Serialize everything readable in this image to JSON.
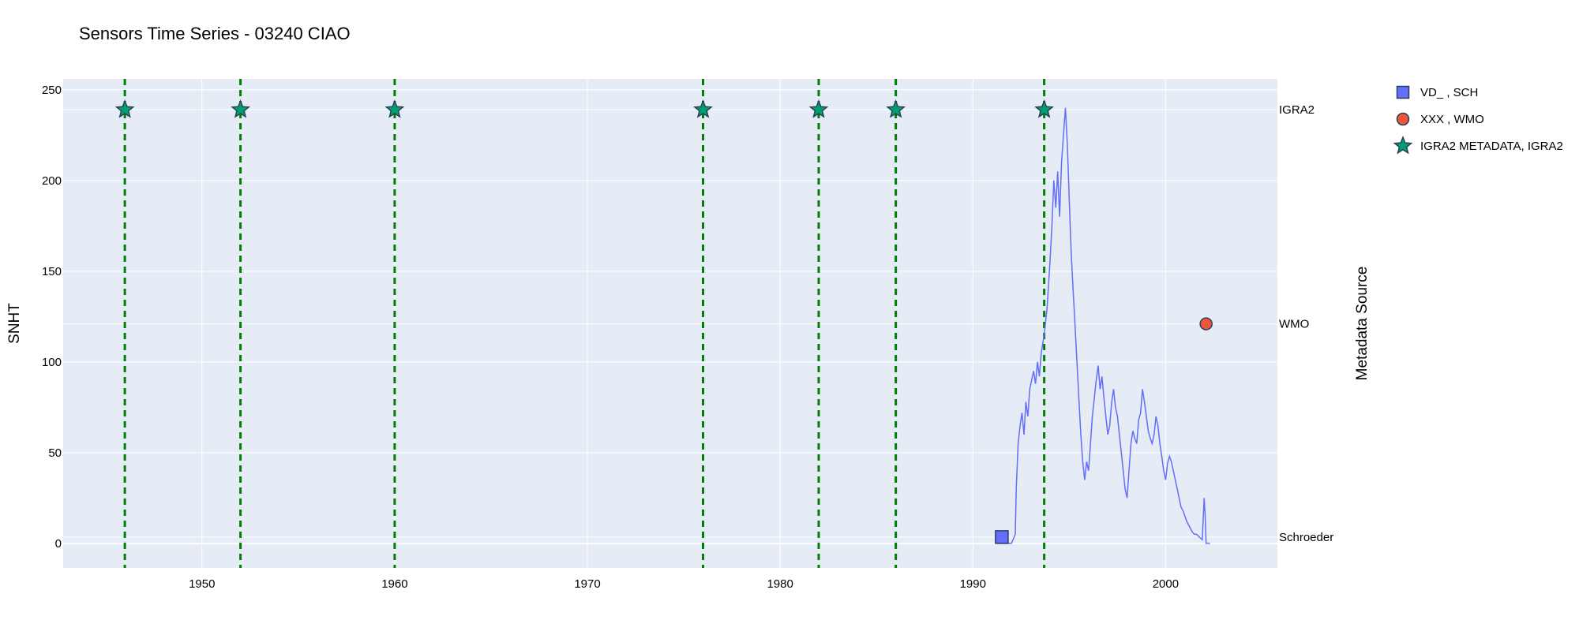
{
  "chart_data": {
    "type": "line",
    "title": "Sensors Time Series - 03240 CIAO",
    "xlabel": "",
    "ylabel": "SNHT",
    "y2label": "Metadata Source",
    "xlim": [
      1942.8,
      2005.8
    ],
    "ylim": [
      -13.5,
      256
    ],
    "x_ticks": [
      1950,
      1960,
      1970,
      1980,
      1990,
      2000
    ],
    "y_ticks": [
      0,
      50,
      100,
      150,
      200,
      250
    ],
    "grid": true,
    "legend_position": "top-right",
    "source_levels": [
      {
        "label": "IGRA2",
        "y": 239
      },
      {
        "label": "WMO",
        "y": 121
      },
      {
        "label": "Schroeder",
        "y": 3.5
      }
    ],
    "event_lines": [
      1946.0,
      1952.0,
      1960.0,
      1976.0,
      1982.0,
      1986.0,
      1993.7
    ],
    "snht_series": {
      "name": "SNHT",
      "x": [
        1991.3,
        1991.6,
        1992.0,
        1992.2,
        1992.25,
        1992.35,
        1992.45,
        1992.55,
        1992.65,
        1992.75,
        1992.85,
        1992.95,
        1993.05,
        1993.15,
        1993.25,
        1993.35,
        1993.45,
        1993.55,
        1993.7,
        1993.85,
        1994.0,
        1994.1,
        1994.2,
        1994.3,
        1994.4,
        1994.5,
        1994.6,
        1994.7,
        1994.8,
        1994.9,
        1995.0,
        1995.1,
        1995.2,
        1995.3,
        1995.4,
        1995.5,
        1995.6,
        1995.7,
        1995.8,
        1995.9,
        1996.0,
        1996.1,
        1996.2,
        1996.3,
        1996.4,
        1996.5,
        1996.6,
        1996.7,
        1996.8,
        1996.9,
        1997.0,
        1997.1,
        1997.2,
        1997.3,
        1997.4,
        1997.5,
        1997.6,
        1997.7,
        1997.8,
        1997.9,
        1998.0,
        1998.1,
        1998.2,
        1998.3,
        1998.4,
        1998.5,
        1998.6,
        1998.7,
        1998.8,
        1998.9,
        1999.0,
        1999.1,
        1999.2,
        1999.3,
        1999.4,
        1999.5,
        1999.6,
        1999.7,
        1999.8,
        1999.9,
        2000.0,
        2000.1,
        2000.2,
        2000.3,
        2000.4,
        2000.5,
        2000.6,
        2000.7,
        2000.8,
        2000.9,
        2001.0,
        2001.1,
        2001.2,
        2001.3,
        2001.4,
        2001.5,
        2001.6,
        2001.7,
        2001.8,
        2001.9,
        2002.0,
        2002.05,
        2002.1,
        2002.15,
        2002.3
      ],
      "y": [
        0,
        0,
        0,
        5,
        30,
        55,
        65,
        72,
        60,
        78,
        70,
        85,
        90,
        95,
        88,
        100,
        92,
        105,
        115,
        130,
        155,
        175,
        200,
        185,
        205,
        180,
        210,
        225,
        240,
        220,
        190,
        160,
        140,
        120,
        100,
        80,
        60,
        45,
        35,
        45,
        40,
        55,
        70,
        80,
        90,
        98,
        85,
        92,
        80,
        70,
        60,
        65,
        78,
        85,
        75,
        70,
        60,
        50,
        40,
        30,
        25,
        40,
        55,
        62,
        58,
        55,
        68,
        72,
        85,
        78,
        70,
        62,
        58,
        55,
        60,
        70,
        65,
        55,
        48,
        40,
        35,
        44,
        48,
        45,
        40,
        35,
        30,
        25,
        20,
        18,
        15,
        12,
        10,
        8,
        6,
        5,
        5,
        4,
        3,
        2,
        25,
        15,
        0,
        0,
        0
      ]
    },
    "series": [
      {
        "name": "VD_ , SCH",
        "marker": "square",
        "color": "#636efa",
        "points": [
          {
            "x": 1991.5,
            "y": 3.5
          }
        ]
      },
      {
        "name": "XXX , WMO",
        "marker": "circle",
        "color": "#ef553b",
        "points": [
          {
            "x": 2002.1,
            "y": 121
          }
        ]
      },
      {
        "name": "IGRA2 METADATA, IGRA2",
        "marker": "star",
        "color": "#00a06d",
        "points": [
          {
            "x": 1946.0,
            "y": 239
          },
          {
            "x": 1952.0,
            "y": 239
          },
          {
            "x": 1960.0,
            "y": 239
          },
          {
            "x": 1976.0,
            "y": 239
          },
          {
            "x": 1982.0,
            "y": 239
          },
          {
            "x": 1986.0,
            "y": 239
          },
          {
            "x": 1993.7,
            "y": 239
          }
        ]
      }
    ],
    "colors": {
      "plot_bg": "#e5ecf6",
      "grid": "#ffffff",
      "line": "#636efa",
      "event_line": "#008000",
      "marker_edge": "#2a3f5f"
    }
  }
}
